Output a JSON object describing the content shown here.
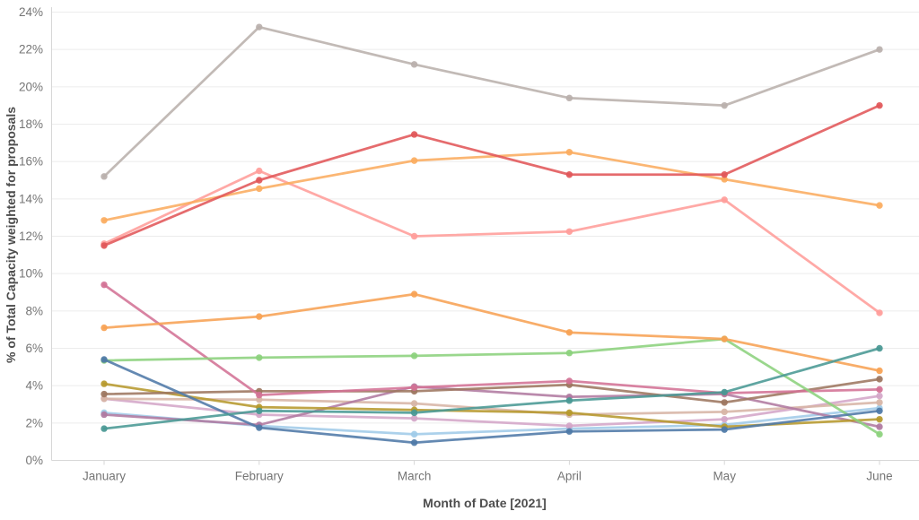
{
  "chart_data": {
    "type": "line",
    "title": "",
    "xlabel": "Month of Date [2021]",
    "ylabel": "% of Total Capacity weighted for proposals",
    "categories": [
      "January",
      "February",
      "March",
      "April",
      "May",
      "June"
    ],
    "y_ticks": [
      "0%",
      "2%",
      "4%",
      "6%",
      "8%",
      "10%",
      "12%",
      "14%",
      "16%",
      "18%",
      "20%",
      "22%",
      "24%"
    ],
    "ylim": [
      0,
      24
    ],
    "grid": "horizontal",
    "legend": "none",
    "series": [
      {
        "name": "light-blue",
        "color": "#A0CBE8",
        "values": [
          2.55,
          1.85,
          1.4,
          1.7,
          1.9,
          2.8
        ]
      },
      {
        "name": "plum",
        "color": "#D4A6C8",
        "values": [
          3.3,
          2.45,
          2.25,
          1.85,
          2.2,
          3.45
        ]
      },
      {
        "name": "tan",
        "color": "#D7B5A6",
        "values": [
          3.3,
          3.25,
          3.05,
          2.45,
          2.6,
          3.1
        ]
      },
      {
        "name": "purple",
        "color": "#B07AA1",
        "values": [
          2.45,
          1.9,
          3.95,
          3.4,
          3.55,
          1.8
        ]
      },
      {
        "name": "olive",
        "color": "#B6992D",
        "values": [
          4.1,
          2.85,
          2.7,
          2.55,
          1.8,
          2.2
        ]
      },
      {
        "name": "brown",
        "color": "#9D7660",
        "values": [
          3.55,
          3.7,
          3.7,
          4.05,
          3.1,
          4.35
        ]
      },
      {
        "name": "magenta",
        "color": "#D37295",
        "values": [
          9.4,
          3.5,
          3.9,
          4.25,
          3.6,
          3.8
        ]
      },
      {
        "name": "green",
        "color": "#8CD17D",
        "values": [
          5.35,
          5.5,
          5.6,
          5.75,
          6.5,
          1.4
        ]
      },
      {
        "name": "blue",
        "color": "#4E79A7",
        "values": [
          5.4,
          1.75,
          0.95,
          1.55,
          1.65,
          2.65
        ]
      },
      {
        "name": "orange",
        "color": "#F7A254",
        "values": [
          7.1,
          7.7,
          8.9,
          6.85,
          6.5,
          4.8
        ]
      },
      {
        "name": "salmon",
        "color": "#FF9D9A",
        "values": [
          11.6,
          15.5,
          12.0,
          12.25,
          13.95,
          7.9
        ]
      },
      {
        "name": "light-orange",
        "color": "#FBAC60",
        "values": [
          12.85,
          14.55,
          16.05,
          16.5,
          15.05,
          13.65
        ]
      },
      {
        "name": "red",
        "color": "#E15759",
        "values": [
          11.5,
          15.0,
          17.45,
          15.3,
          15.3,
          19.0
        ]
      },
      {
        "name": "teal",
        "color": "#499894",
        "values": [
          1.7,
          2.65,
          2.55,
          3.2,
          3.65,
          6.0
        ]
      },
      {
        "name": "light-gray",
        "color": "#BAB0AC",
        "values": [
          15.2,
          23.2,
          21.2,
          19.4,
          19.0,
          22.0
        ]
      }
    ]
  }
}
